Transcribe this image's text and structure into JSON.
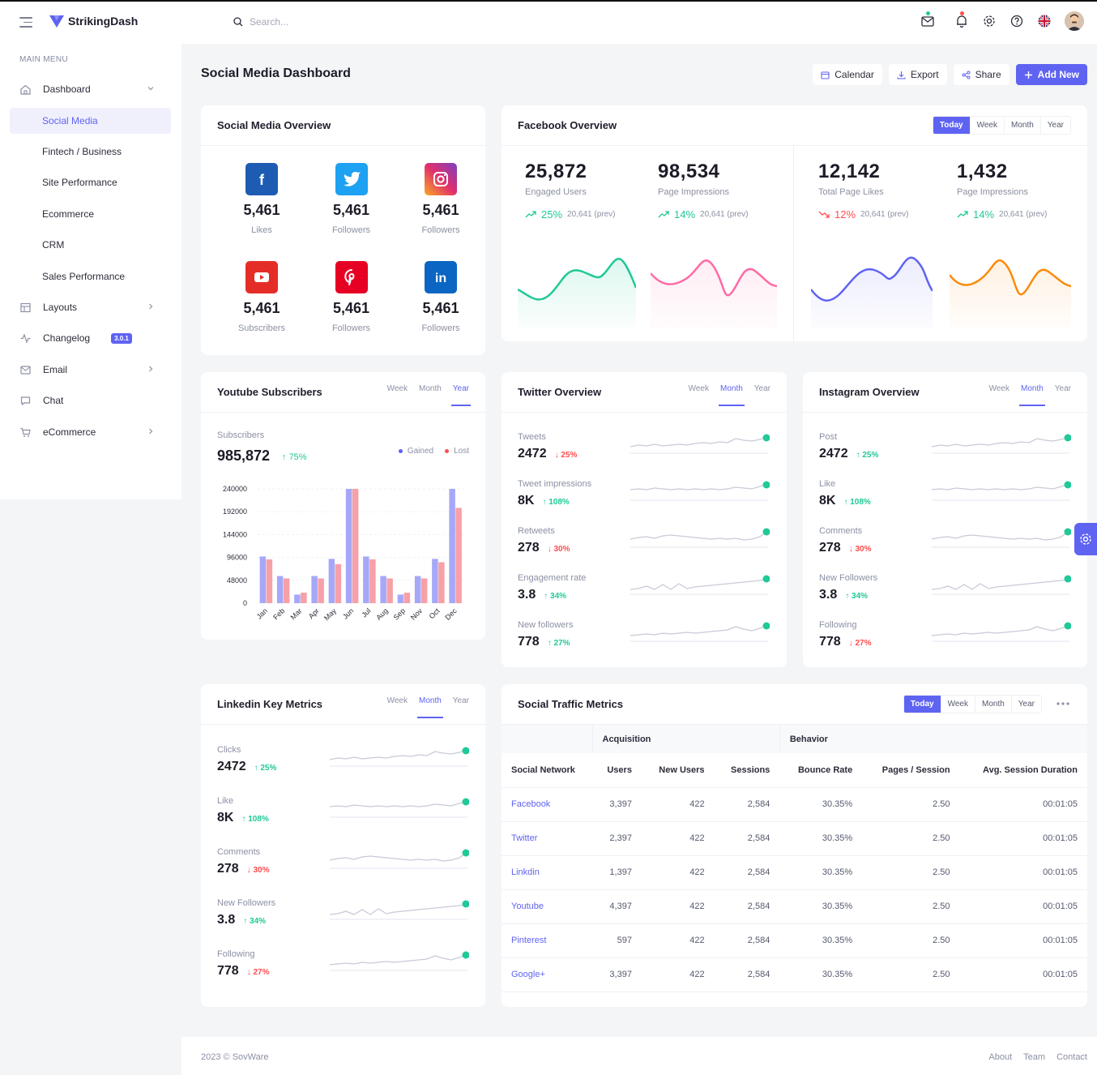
{
  "header": {
    "brand": "StrikingDash",
    "search_placeholder": "Search..."
  },
  "sidebar": {
    "menu_label": "MAIN MENU",
    "dashboard": "Dashboard",
    "sub": [
      "Social Media",
      "Fintech / Business",
      "Site Performance",
      "Ecommerce",
      "CRM",
      "Sales Performance"
    ],
    "layouts": "Layouts",
    "changelog": "Changelog",
    "changelog_badge": "3.0.1",
    "email": "Email",
    "chat": "Chat",
    "ecommerce": "eCommerce"
  },
  "page": {
    "title": "Social Media Dashboard",
    "buttons": {
      "calendar": "Calendar",
      "export": "Export",
      "share": "Share",
      "add_new": "Add New"
    }
  },
  "social_overview": {
    "title": "Social Media Overview",
    "items": [
      {
        "value": "5,461",
        "label": "Likes",
        "icon": "facebook-icon",
        "color": "#1e5cb3"
      },
      {
        "value": "5,461",
        "label": "Followers",
        "icon": "twitter-icon",
        "color": "#1da1f2"
      },
      {
        "value": "5,461",
        "label": "Followers",
        "icon": "instagram-icon",
        "color": "#d6249f"
      },
      {
        "value": "5,461",
        "label": "Subscribers",
        "icon": "youtube-icon",
        "color": "#e52d27"
      },
      {
        "value": "5,461",
        "label": "Followers",
        "icon": "pinterest-icon",
        "color": "#e60023"
      },
      {
        "value": "5,461",
        "label": "Followers",
        "icon": "linkedin-icon",
        "color": "#0a66c2"
      }
    ]
  },
  "facebook": {
    "title": "Facebook Overview",
    "tabs": [
      "Today",
      "Week",
      "Month",
      "Year"
    ],
    "stats": [
      {
        "value": "25,872",
        "label": "Engaged Users",
        "change": "25%",
        "prev": "20,641 (prev)",
        "dir": "up"
      },
      {
        "value": "98,534",
        "label": "Page Impressions",
        "change": "14%",
        "prev": "20,641 (prev)",
        "dir": "up"
      },
      {
        "value": "12,142",
        "label": "Total Page Likes",
        "change": "12%",
        "prev": "20,641 (prev)",
        "dir": "down"
      },
      {
        "value": "1,432",
        "label": "Page Impressions",
        "change": "14%",
        "prev": "20,641 (prev)",
        "dir": "up"
      }
    ]
  },
  "youtube": {
    "title": "Youtube Subscribers",
    "tabs": [
      "Week",
      "Month",
      "Year"
    ],
    "sub_label": "Subscribers",
    "sub_value": "985,872",
    "sub_change": "75%",
    "legend_gained": "Gained",
    "legend_lost": "Lost"
  },
  "twitter": {
    "title": "Twitter Overview",
    "tabs": [
      "Week",
      "Month",
      "Year"
    ],
    "metrics": [
      {
        "label": "Tweets",
        "value": "2472",
        "change": "25%",
        "dir": "down"
      },
      {
        "label": "Tweet impressions",
        "value": "8K",
        "change": "108%",
        "dir": "up"
      },
      {
        "label": "Retweets",
        "value": "278",
        "change": "30%",
        "dir": "down"
      },
      {
        "label": "Engagement rate",
        "value": "3.8",
        "change": "34%",
        "dir": "up"
      },
      {
        "label": "New followers",
        "value": "778",
        "change": "27%",
        "dir": "up"
      }
    ]
  },
  "instagram": {
    "title": "Instagram Overview",
    "tabs": [
      "Week",
      "Month",
      "Year"
    ],
    "metrics": [
      {
        "label": "Post",
        "value": "2472",
        "change": "25%",
        "dir": "up"
      },
      {
        "label": "Like",
        "value": "8K",
        "change": "108%",
        "dir": "up"
      },
      {
        "label": "Comments",
        "value": "278",
        "change": "30%",
        "dir": "down"
      },
      {
        "label": "New Followers",
        "value": "3.8",
        "change": "34%",
        "dir": "up"
      },
      {
        "label": "Following",
        "value": "778",
        "change": "27%",
        "dir": "down"
      }
    ]
  },
  "linkedin": {
    "title": "Linkedin Key Metrics",
    "tabs": [
      "Week",
      "Month",
      "Year"
    ],
    "metrics": [
      {
        "label": "Clicks",
        "value": "2472",
        "change": "25%",
        "dir": "up"
      },
      {
        "label": "Like",
        "value": "8K",
        "change": "108%",
        "dir": "up"
      },
      {
        "label": "Comments",
        "value": "278",
        "change": "30%",
        "dir": "down"
      },
      {
        "label": "New Followers",
        "value": "3.8",
        "change": "34%",
        "dir": "up"
      },
      {
        "label": "Following",
        "value": "778",
        "change": "27%",
        "dir": "down"
      }
    ]
  },
  "traffic": {
    "title": "Social Traffic Metrics",
    "tabs": [
      "Today",
      "Week",
      "Month",
      "Year"
    ],
    "group_acquisition": "Acquisition",
    "group_behavior": "Behavior",
    "columns": [
      "Social Network",
      "Users",
      "New Users",
      "Sessions",
      "Bounce Rate",
      "Pages / Session",
      "Avg. Session Duration"
    ],
    "rows": [
      [
        "Facebook",
        "3,397",
        "422",
        "2,584",
        "30.35%",
        "2.50",
        "00:01:05"
      ],
      [
        "Twitter",
        "2,397",
        "422",
        "2,584",
        "30.35%",
        "2.50",
        "00:01:05"
      ],
      [
        "Linkdin",
        "1,397",
        "422",
        "2,584",
        "30.35%",
        "2.50",
        "00:01:05"
      ],
      [
        "Youtube",
        "4,397",
        "422",
        "2,584",
        "30.35%",
        "2.50",
        "00:01:05"
      ],
      [
        "Pinterest",
        "597",
        "422",
        "2,584",
        "30.35%",
        "2.50",
        "00:01:05"
      ],
      [
        "Google+",
        "3,397",
        "422",
        "2,584",
        "30.35%",
        "2.50",
        "00:01:05"
      ]
    ]
  },
  "footer": {
    "copyright": "2023 © SovWare",
    "links": [
      "About",
      "Team",
      "Contact"
    ]
  },
  "chart_data": {
    "type": "bar",
    "categories": [
      "Jan",
      "Feb",
      "Mar",
      "Apr",
      "May",
      "Jun",
      "Jul",
      "Aug",
      "Sep",
      "Nov",
      "Oct",
      "Dec"
    ],
    "series": [
      {
        "name": "Gained",
        "color": "#a6a8f7",
        "values": [
          98000,
          57000,
          18000,
          57000,
          93000,
          240000,
          98000,
          57000,
          18000,
          57000,
          93000,
          240000
        ]
      },
      {
        "name": "Lost",
        "color": "#f7a0a8",
        "values": [
          92000,
          52000,
          22000,
          52000,
          82000,
          240000,
          92000,
          52000,
          22000,
          52000,
          86000,
          200000
        ]
      }
    ],
    "yticks": [
      "240000",
      "192000",
      "144000",
      "96000",
      "48000",
      "0"
    ],
    "ylim": [
      0,
      240000
    ]
  }
}
